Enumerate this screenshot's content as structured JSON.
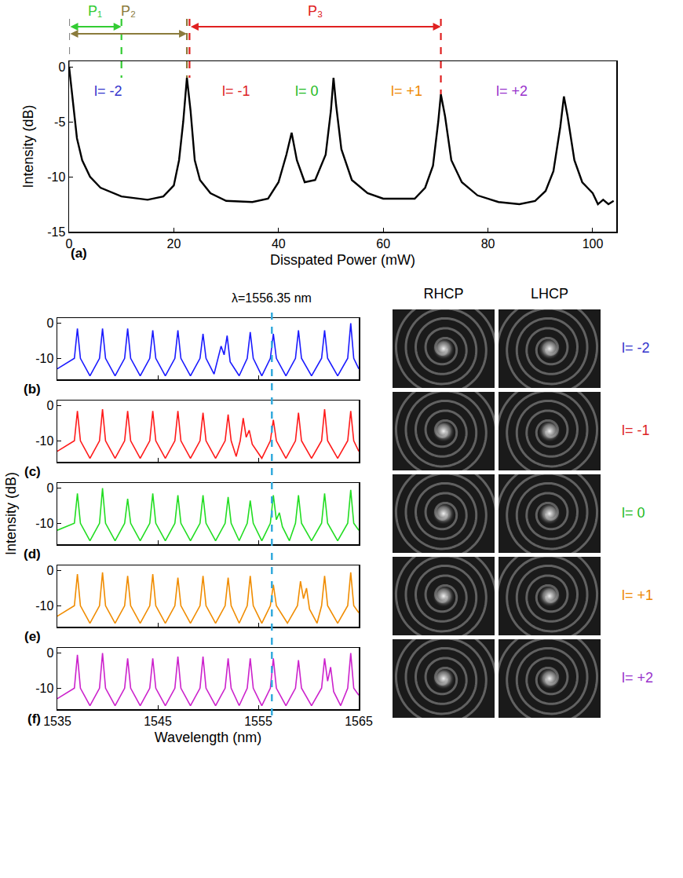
{
  "chart_data": [
    {
      "type": "line",
      "title": "(a)",
      "x_label": "Disspated Power (mW)",
      "y_label": "Intensity (dB)",
      "color": "#000000",
      "x": [
        0,
        0.7,
        1.5,
        2.5,
        4,
        6,
        10,
        15,
        18,
        20,
        21,
        21.8,
        22.5,
        23.2,
        24,
        25,
        27,
        30,
        35,
        38,
        40,
        41.5,
        42.5,
        43.5,
        45,
        47,
        49,
        50,
        50.5,
        51,
        52,
        54,
        57,
        60,
        63,
        66,
        68,
        69.5,
        70.5,
        71,
        71.8,
        73,
        75,
        78,
        82,
        86,
        89,
        91,
        92.5,
        93.8,
        94.5,
        95.2,
        96.5,
        98,
        99,
        100,
        101,
        102,
        103,
        104
      ],
      "values": [
        0,
        -3,
        -6.5,
        -8.5,
        -10,
        -11,
        -11.8,
        -12.1,
        -11.8,
        -10.8,
        -8.5,
        -5,
        -1,
        -4,
        -8.5,
        -10.3,
        -11.5,
        -12.2,
        -12.3,
        -12,
        -10.5,
        -8,
        -6,
        -8.5,
        -10.5,
        -10.3,
        -8,
        -4,
        -1,
        -3.5,
        -7.5,
        -10.3,
        -11.5,
        -12,
        -12,
        -12,
        -11,
        -9,
        -5,
        -2.5,
        -4.5,
        -8.5,
        -10.5,
        -11.7,
        -12.3,
        -12.5,
        -12.2,
        -11.3,
        -9.5,
        -5.5,
        -2.7,
        -4.5,
        -8.5,
        -10.5,
        -11,
        -11.5,
        -12.5,
        -12.1,
        -12.5,
        -12.2
      ],
      "xlim": [
        0,
        104.5
      ],
      "xticks": [
        0,
        20,
        40,
        60,
        80,
        100
      ],
      "ylim": [
        -15,
        0.5
      ],
      "yticks": [
        -15,
        -10,
        -5,
        0
      ],
      "annotations": [
        {
          "text": "l= -2",
          "x": 7.5,
          "y": -2.2,
          "color": "#3333cc"
        },
        {
          "text": "l= -1",
          "x": 32,
          "y": -2.2,
          "color": "#dd2222"
        },
        {
          "text": "l= 0",
          "x": 45.5,
          "y": -2.2,
          "color": "#22bb22"
        },
        {
          "text": "l= +1",
          "x": 64.5,
          "y": -2.2,
          "color": "#ee8800"
        },
        {
          "text": "l= +2",
          "x": 84.5,
          "y": -2.2,
          "color": "#9933cc"
        }
      ],
      "ranges": [
        {
          "text": "P₁",
          "from": 0,
          "to": 10,
          "color": "#33cc33"
        },
        {
          "text": "P₂",
          "from": 0,
          "to": 22.5,
          "color": "#8b7b3c"
        },
        {
          "text": "P₃",
          "from": 23,
          "to": 71,
          "color": "#e02020"
        }
      ],
      "guide_lines": [
        {
          "x": 0,
          "y": 0,
          "color": "#888888"
        },
        {
          "x": 10,
          "y": -1,
          "color": "#33cc33"
        },
        {
          "x": 22.5,
          "y": -1,
          "color": "#8b7b3c"
        },
        {
          "x": 23,
          "y": -1,
          "color": "#e02020"
        },
        {
          "x": 71,
          "y": -2.5,
          "color": "#e02020"
        }
      ]
    },
    {
      "type": "line",
      "title": "(b)",
      "color": "#1a1aff",
      "tick_labels": "y",
      "x": [
        1535,
        1536.7,
        1537,
        1537.3,
        1538.25,
        1539.2,
        1539.5,
        1539.8,
        1540.75,
        1541.7,
        1542,
        1542.3,
        1543.25,
        1544.2,
        1544.5,
        1544.8,
        1545.75,
        1546.7,
        1547,
        1547.3,
        1548.25,
        1549.2,
        1549.5,
        1549.8,
        1550.6,
        1551,
        1551.3,
        1551.6,
        1551.9,
        1552.2,
        1553.1,
        1553.9,
        1554.2,
        1554.5,
        1555.35,
        1556.2,
        1556.5,
        1556.8,
        1557.75,
        1558.7,
        1559,
        1559.3,
        1560.3,
        1561.3,
        1561.6,
        1561.9,
        1562.9,
        1563.9,
        1564.2,
        1564.5,
        1565
      ],
      "values": [
        -13,
        -10,
        -1.5,
        -10,
        -15,
        -10,
        -1.5,
        -10,
        -15,
        -10,
        -1.5,
        -10,
        -15,
        -10,
        -2,
        -10,
        -15,
        -10,
        -2,
        -10,
        -15,
        -10,
        -3,
        -10,
        -14.5,
        -10,
        -6.5,
        -9,
        -3.5,
        -11,
        -15,
        -10,
        -2.5,
        -10,
        -15,
        -10,
        -3,
        -10,
        -15,
        -10,
        -2,
        -10,
        -15,
        -10,
        -2,
        -10,
        -15,
        -10,
        0,
        -10,
        -13
      ],
      "xlim": [
        1535,
        1565
      ],
      "xticks": [
        1535,
        1545,
        1555,
        1565
      ],
      "ylim": [
        -16,
        1.5
      ],
      "yticks": [
        -10,
        0
      ]
    },
    {
      "type": "line",
      "title": "(c)",
      "color": "#ff1a1a",
      "tick_labels": "y",
      "x": [
        1535,
        1536.7,
        1537,
        1537.3,
        1538.25,
        1539.2,
        1539.5,
        1539.8,
        1540.75,
        1541.7,
        1542,
        1542.3,
        1543.25,
        1544.2,
        1544.5,
        1544.8,
        1545.75,
        1546.7,
        1547,
        1547.3,
        1548.25,
        1549.2,
        1549.5,
        1549.8,
        1550.75,
        1551.7,
        1552,
        1552.3,
        1552.8,
        1553.2,
        1553.5,
        1553.8,
        1554.1,
        1554.4,
        1555.35,
        1556.2,
        1556.5,
        1556.8,
        1557.75,
        1558.7,
        1559,
        1559.3,
        1560.3,
        1561.3,
        1561.6,
        1561.9,
        1562.9,
        1563.9,
        1564.2,
        1564.5,
        1565
      ],
      "values": [
        -13,
        -10,
        -1.5,
        -10,
        -15,
        -10,
        -1,
        -10,
        -15,
        -10,
        -1.5,
        -10,
        -15,
        -10,
        -1.5,
        -10,
        -15,
        -10,
        -1.5,
        -10,
        -15,
        -10,
        -2,
        -10,
        -15,
        -10,
        -2.5,
        -10,
        -14.5,
        -10,
        -3.5,
        -9,
        -7,
        -11,
        -15,
        -10,
        -4,
        -10,
        -15,
        -10,
        -2,
        -10,
        -15,
        -10,
        -1,
        -10,
        -15,
        -10,
        -1.5,
        -10,
        -13
      ],
      "xlim": [
        1535,
        1565
      ],
      "xticks": [
        1535,
        1545,
        1555,
        1565
      ],
      "ylim": [
        -16,
        1.5
      ],
      "yticks": [
        -10,
        0
      ]
    },
    {
      "type": "line",
      "title": "(d)",
      "color": "#22dd22",
      "tick_labels": "y",
      "y_label": "Intensity (dB)",
      "x": [
        1535,
        1536.7,
        1537,
        1537.3,
        1538.25,
        1539.2,
        1539.5,
        1539.8,
        1540.75,
        1541.7,
        1542,
        1542.3,
        1543.25,
        1544.2,
        1544.5,
        1544.8,
        1545.75,
        1546.7,
        1547,
        1547.3,
        1548.25,
        1549.2,
        1549.5,
        1549.8,
        1550.75,
        1551.7,
        1552,
        1552.3,
        1553.1,
        1553.9,
        1554.2,
        1554.5,
        1555.35,
        1556.2,
        1556.5,
        1556.8,
        1557.1,
        1557.4,
        1558.1,
        1558.7,
        1559,
        1559.3,
        1560.3,
        1561.3,
        1561.6,
        1561.9,
        1562.9,
        1563.9,
        1564.2,
        1564.5,
        1565
      ],
      "values": [
        -12,
        -10,
        -1.5,
        -10,
        -15,
        -10,
        0,
        -10,
        -15,
        -10,
        -3,
        -10,
        -15,
        -10,
        -1.5,
        -10,
        -15,
        -10,
        -2,
        -10,
        -15,
        -10,
        -2,
        -10,
        -15,
        -10,
        -2.5,
        -10,
        -15,
        -10,
        -3.5,
        -10,
        -15,
        -10,
        -2,
        -9,
        -7,
        -11,
        -15,
        -10,
        -2,
        -10,
        -15,
        -10,
        -1.5,
        -10,
        -15,
        -10,
        -0.5,
        -10,
        -12
      ],
      "xlim": [
        1535,
        1565
      ],
      "xticks": [
        1535,
        1545,
        1555,
        1565
      ],
      "ylim": [
        -16,
        1.5
      ],
      "yticks": [
        -10,
        0
      ]
    },
    {
      "type": "line",
      "title": "(e)",
      "color": "#f08c00",
      "tick_labels": "y",
      "x": [
        1535,
        1536.7,
        1537,
        1537.3,
        1538.25,
        1539.2,
        1539.5,
        1539.8,
        1540.75,
        1541.7,
        1542,
        1542.3,
        1543.25,
        1544.2,
        1544.5,
        1544.8,
        1545.75,
        1546.7,
        1547,
        1547.3,
        1548.25,
        1549.2,
        1549.5,
        1549.8,
        1550.75,
        1551.7,
        1552,
        1552.3,
        1553.1,
        1553.9,
        1554.2,
        1554.5,
        1555.35,
        1556.2,
        1556.5,
        1556.8,
        1557.9,
        1558.9,
        1559.2,
        1559.5,
        1559.8,
        1560.1,
        1560.85,
        1561.3,
        1561.6,
        1561.9,
        1562.9,
        1563.9,
        1564.2,
        1564.5,
        1565
      ],
      "values": [
        -13,
        -10,
        -1,
        -10,
        -15,
        -10,
        -0.5,
        -10,
        -15,
        -10,
        -1.5,
        -10,
        -15,
        -10,
        -1,
        -10,
        -15,
        -10,
        -2,
        -10,
        -15,
        -10,
        -1.5,
        -10,
        -15,
        -10,
        -2,
        -10,
        -15,
        -10,
        -1.5,
        -10,
        -15,
        -10,
        -4,
        -10,
        -15,
        -10,
        -3,
        -8,
        -5,
        -11,
        -15,
        -10,
        -1.5,
        -10,
        -15,
        -10,
        -0.5,
        -10,
        -12
      ],
      "xlim": [
        1535,
        1565
      ],
      "xticks": [
        1535,
        1545,
        1555,
        1565
      ],
      "ylim": [
        -16,
        1.5
      ],
      "yticks": [
        -10,
        0
      ]
    },
    {
      "type": "line",
      "title": "(f)",
      "color": "#cc22cc",
      "x_label": "Wavelength (nm)",
      "x": [
        1535,
        1536.7,
        1537,
        1537.3,
        1538.25,
        1539.2,
        1539.5,
        1539.8,
        1540.75,
        1541.7,
        1542,
        1542.3,
        1543.25,
        1544.2,
        1544.5,
        1544.8,
        1545.75,
        1546.7,
        1547,
        1547.3,
        1548.25,
        1549.2,
        1549.5,
        1549.8,
        1550.75,
        1551.7,
        1552,
        1552.3,
        1553.1,
        1553.9,
        1554.2,
        1554.5,
        1555.35,
        1556.2,
        1556.5,
        1556.8,
        1557.75,
        1558.7,
        1559,
        1559.3,
        1560.3,
        1561.3,
        1561.6,
        1561.9,
        1562.2,
        1562.5,
        1563.2,
        1563.9,
        1564.2,
        1564.5,
        1565
      ],
      "values": [
        -13,
        -10,
        -0.5,
        -10,
        -15,
        -10,
        0,
        -10,
        -15,
        -10,
        -1.5,
        -10,
        -15,
        -10,
        -1.5,
        -10,
        -15,
        -10,
        -1,
        -10,
        -15,
        -10,
        -1,
        -10,
        -15,
        -10,
        -1.5,
        -10,
        -15,
        -10,
        -1.5,
        -10,
        -15,
        -10,
        -1.5,
        -10,
        -15,
        -10,
        -2,
        -10,
        -15,
        -10,
        -1.5,
        -8,
        -4,
        -11,
        -15,
        -10,
        0,
        -10,
        -12
      ],
      "xlim": [
        1535,
        1565
      ],
      "xticks": [
        1535,
        1545,
        1555,
        1565
      ],
      "ylim": [
        -16,
        1.5
      ],
      "yticks": [
        -10,
        0
      ]
    }
  ],
  "reference_line": {
    "x": 1556.35,
    "text": "λ=1556.35 nm",
    "color": "#33aadd"
  },
  "images": {
    "columns": [
      "RHCP",
      "LHCP"
    ],
    "rows": [
      {
        "label": "l= -2",
        "color": "#3333cc"
      },
      {
        "label": "l= -1",
        "color": "#dd2222"
      },
      {
        "label": "l= 0",
        "color": "#22bb22"
      },
      {
        "label": "l= +1",
        "color": "#ee8800"
      },
      {
        "label": "l= +2",
        "color": "#9933cc"
      }
    ]
  }
}
